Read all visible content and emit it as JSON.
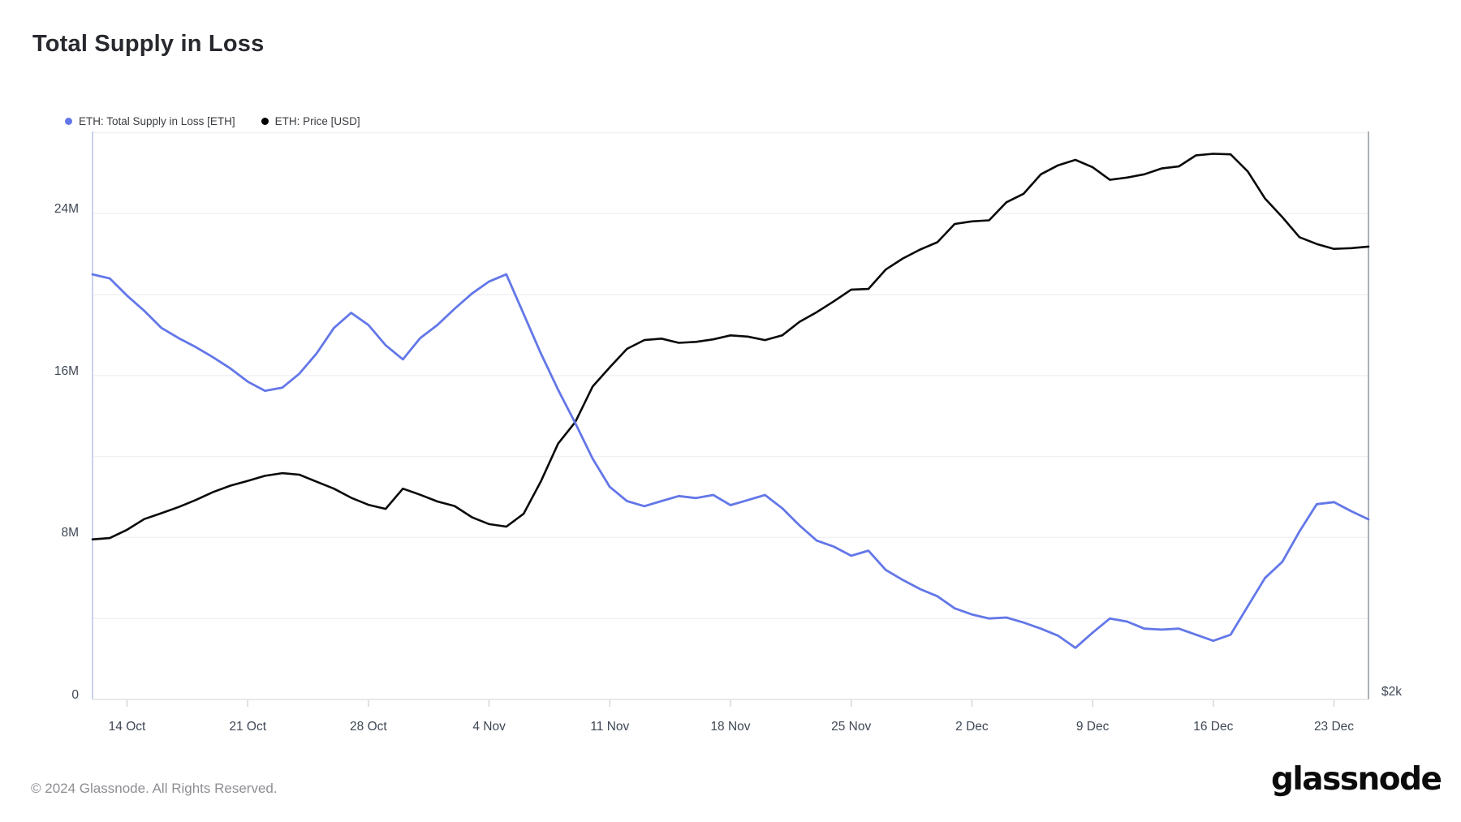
{
  "page": {
    "title": "Total Supply in Loss",
    "footer_copyright": "© 2024 Glassnode. All Rights Reserved.",
    "brand_logo_text": "glassnode"
  },
  "legend": {
    "items": [
      {
        "label": "ETH: Total Supply in Loss [ETH]",
        "color": "#6377e8"
      },
      {
        "label": "ETH: Price [USD]",
        "color": "#000000"
      }
    ]
  },
  "colors": {
    "supply_line": "#6377e8",
    "price_line": "#0a0a0a",
    "gridline": "#f1f1f4",
    "left_axis_line": "#c8d2f2",
    "right_axis_line": "#8f969e",
    "bottom_axis_line": "#e9e9ec",
    "tick_mark": "#d6d6da",
    "axis_text": "#3f4755"
  },
  "chart_data": {
    "type": "line",
    "title": "Total Supply in Loss",
    "x": [
      "12 Oct",
      "13 Oct",
      "14 Oct",
      "15 Oct",
      "16 Oct",
      "17 Oct",
      "18 Oct",
      "19 Oct",
      "20 Oct",
      "21 Oct",
      "22 Oct",
      "23 Oct",
      "24 Oct",
      "25 Oct",
      "26 Oct",
      "27 Oct",
      "28 Oct",
      "29 Oct",
      "30 Oct",
      "31 Oct",
      "1 Nov",
      "2 Nov",
      "3 Nov",
      "4 Nov",
      "5 Nov",
      "6 Nov",
      "7 Nov",
      "8 Nov",
      "9 Nov",
      "10 Nov",
      "11 Nov",
      "12 Nov",
      "13 Nov",
      "14 Nov",
      "15 Nov",
      "16 Nov",
      "17 Nov",
      "18 Nov",
      "19 Nov",
      "20 Nov",
      "21 Nov",
      "22 Nov",
      "23 Nov",
      "24 Nov",
      "25 Nov",
      "26 Nov",
      "27 Nov",
      "28 Nov",
      "29 Nov",
      "30 Nov",
      "1 Dec",
      "2 Dec",
      "3 Dec",
      "4 Dec",
      "5 Dec",
      "6 Dec",
      "7 Dec",
      "8 Dec",
      "9 Dec",
      "10 Dec",
      "11 Dec",
      "12 Dec",
      "13 Dec",
      "14 Dec",
      "15 Dec",
      "16 Dec",
      "17 Dec",
      "18 Dec",
      "19 Dec",
      "20 Dec",
      "21 Dec",
      "22 Dec",
      "23 Dec",
      "24 Dec",
      "25 Dec"
    ],
    "series": [
      {
        "name": "ETH: Total Supply in Loss [ETH]",
        "axis": "left",
        "unit": "million ETH",
        "color": "#6377e8",
        "values": [
          21.0,
          20.8,
          19.95,
          19.2,
          18.35,
          17.85,
          17.4,
          16.9,
          16.35,
          15.7,
          15.25,
          15.4,
          16.1,
          17.1,
          18.35,
          19.1,
          18.5,
          17.5,
          16.8,
          17.85,
          18.5,
          19.3,
          20.05,
          20.65,
          21.0,
          19.05,
          17.1,
          15.3,
          13.65,
          11.9,
          10.5,
          9.8,
          9.55,
          9.8,
          10.05,
          9.95,
          10.1,
          9.6,
          9.85,
          10.1,
          9.45,
          8.6,
          7.85,
          7.55,
          7.1,
          7.35,
          6.4,
          5.9,
          5.45,
          5.1,
          4.5,
          4.2,
          4.0,
          4.05,
          3.8,
          3.5,
          3.15,
          2.55,
          3.3,
          4.0,
          3.85,
          3.5,
          3.45,
          3.5,
          3.2,
          2.9,
          3.2,
          4.6,
          6.0,
          6.8,
          8.3,
          9.65,
          9.75,
          9.3,
          8.9
        ]
      },
      {
        "name": "ETH: Price [USD]",
        "axis": "right",
        "unit": "USD",
        "color": "#0a0a0a",
        "values": [
          2451,
          2455,
          2481,
          2515,
          2534,
          2554,
          2577,
          2603,
          2624,
          2640,
          2657,
          2666,
          2661,
          2637,
          2614,
          2584,
          2561,
          2548,
          2614,
          2594,
          2572,
          2557,
          2521,
          2499,
          2491,
          2532,
          2638,
          2768,
          2845,
          2976,
          3050,
          3122,
          3157,
          3163,
          3146,
          3150,
          3160,
          3176,
          3171,
          3157,
          3176,
          3231,
          3271,
          3317,
          3366,
          3369,
          3453,
          3502,
          3542,
          3575,
          3659,
          3671,
          3676,
          3761,
          3802,
          3897,
          3942,
          3969,
          3932,
          3870,
          3881,
          3897,
          3926,
          3936,
          3992,
          4000,
          3997,
          3911,
          3779,
          3691,
          3598,
          3567,
          3545,
          3548,
          3555
        ]
      }
    ],
    "left_axis": {
      "tick_labels": [
        "0",
        "8M",
        "16M",
        "24M"
      ],
      "tick_values": [
        0,
        8,
        16,
        24
      ],
      "min": 0,
      "max": 28.06,
      "gridline_values": [
        4,
        8,
        12,
        16,
        20,
        24,
        28
      ]
    },
    "right_axis": {
      "visible_label": "$2k",
      "scale": "log",
      "bottom_value": 2000,
      "top_value": 4115
    },
    "x_axis": {
      "tick_labels": [
        "14 Oct",
        "21 Oct",
        "28 Oct",
        "4 Nov",
        "11 Nov",
        "18 Nov",
        "25 Nov",
        "2 Dec",
        "9 Dec",
        "16 Dec",
        "23 Dec"
      ],
      "tick_day_indices": [
        2,
        9,
        16,
        23,
        30,
        37,
        44,
        51,
        58,
        65,
        72
      ]
    },
    "legend_position": "top-left",
    "grid": "horizontal-only"
  },
  "layout_note": ""
}
